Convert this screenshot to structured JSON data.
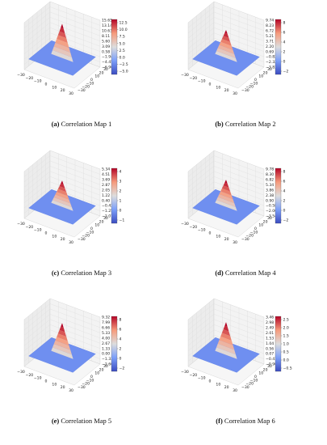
{
  "chart_data": [
    {
      "type": "surface3d",
      "caption_letter": "(a)",
      "caption_text": "Correlation Map 1",
      "xticks": [
        "−30",
        "−20",
        "−10",
        "0",
        "10",
        "20",
        "30"
      ],
      "yticks": [
        "−30",
        "−20",
        "−10",
        "0",
        "10",
        "20",
        "30"
      ],
      "zticks": [
        "15.65",
        "13.14",
        "10.63",
        "8.11",
        "5.60",
        "3.09",
        "0.58",
        "−1.94",
        "−4.45",
        "−6.96"
      ],
      "colorbar_ticks": [
        "12.5",
        "10.0",
        "7.5",
        "5.0",
        "2.5",
        "0.0",
        "−2.5",
        "−5.0"
      ],
      "zlim": [
        -6.96,
        15.65
      ],
      "cmap": "coolwarm"
    },
    {
      "type": "surface3d",
      "caption_letter": "(b)",
      "caption_text": "Correlation Map 2",
      "xticks": [
        "−30",
        "−20",
        "−10",
        "0",
        "10",
        "20",
        "30"
      ],
      "yticks": [
        "−30",
        "−20",
        "−10",
        "0",
        "10",
        "20",
        "30"
      ],
      "zticks": [
        "9.74",
        "8.23",
        "6.72",
        "5.21",
        "3.71",
        "2.20",
        "0.69",
        "−0.82",
        "−2.32",
        "−3.83"
      ],
      "colorbar_ticks": [
        "8",
        "6",
        "4",
        "2",
        "0",
        "−2"
      ],
      "zlim": [
        -3.83,
        9.74
      ],
      "cmap": "coolwarm"
    },
    {
      "type": "surface3d",
      "caption_letter": "(c)",
      "caption_text": "Correlation Map 3",
      "xticks": [
        "−30",
        "−20",
        "−10",
        "0",
        "10",
        "20",
        "30"
      ],
      "yticks": [
        "−30",
        "−20",
        "−10",
        "0",
        "10",
        "20",
        "30"
      ],
      "zticks": [
        "5.34",
        "4.51",
        "3.69",
        "2.87",
        "2.05",
        "1.22",
        "0.40",
        "−0.42",
        "−1.25",
        "−2.07"
      ],
      "colorbar_ticks": [
        "4",
        "3",
        "2",
        "1",
        "0",
        "−1"
      ],
      "zlim": [
        -2.07,
        5.34
      ],
      "cmap": "coolwarm"
    },
    {
      "type": "surface3d",
      "caption_letter": "(d)",
      "caption_text": "Correlation Map 4",
      "xticks": [
        "−30",
        "−20",
        "−10",
        "0",
        "10",
        "20",
        "30"
      ],
      "yticks": [
        "−30",
        "−20",
        "−10",
        "0",
        "10",
        "20",
        "30"
      ],
      "zticks": [
        "9.78",
        "8.30",
        "6.82",
        "5.34",
        "3.86",
        "2.38",
        "0.90",
        "−0.58",
        "−2.06",
        "−3.54"
      ],
      "colorbar_ticks": [
        "8",
        "6",
        "4",
        "2",
        "0",
        "−2"
      ],
      "zlim": [
        -3.54,
        9.78
      ],
      "cmap": "coolwarm"
    },
    {
      "type": "surface3d",
      "caption_letter": "(e)",
      "caption_text": "Correlation Map 5",
      "xticks": [
        "−30",
        "−20",
        "−10",
        "0",
        "10",
        "20",
        "30"
      ],
      "yticks": [
        "−30",
        "−20",
        "−10",
        "0",
        "10",
        "20",
        "30"
      ],
      "zticks": [
        "9.32",
        "7.99",
        "6.66",
        "5.33",
        "4.00",
        "2.67",
        "1.33",
        "0.00",
        "−1.33",
        "−2.66"
      ],
      "colorbar_ticks": [
        "8",
        "6",
        "4",
        "2",
        "0",
        "−2"
      ],
      "zlim": [
        -2.66,
        9.32
      ],
      "cmap": "coolwarm"
    },
    {
      "type": "surface3d",
      "caption_letter": "(f)",
      "caption_text": "Correlation Map 6",
      "xticks": [
        "−30",
        "−20",
        "−10",
        "0",
        "10",
        "20",
        "30"
      ],
      "yticks": [
        "−30",
        "−20",
        "−10",
        "0",
        "10",
        "20",
        "30"
      ],
      "zticks": [
        "3.46",
        "2.98",
        "2.49",
        "2.01",
        "1.53",
        "1.04",
        "0.56",
        "0.07",
        "−0.41",
        "−0.90"
      ],
      "colorbar_ticks": [
        "2.5",
        "2.0",
        "1.5",
        "1.0",
        "0.5",
        "0.0",
        "−0.5"
      ],
      "zlim": [
        -0.9,
        3.46
      ],
      "cmap": "coolwarm"
    }
  ]
}
